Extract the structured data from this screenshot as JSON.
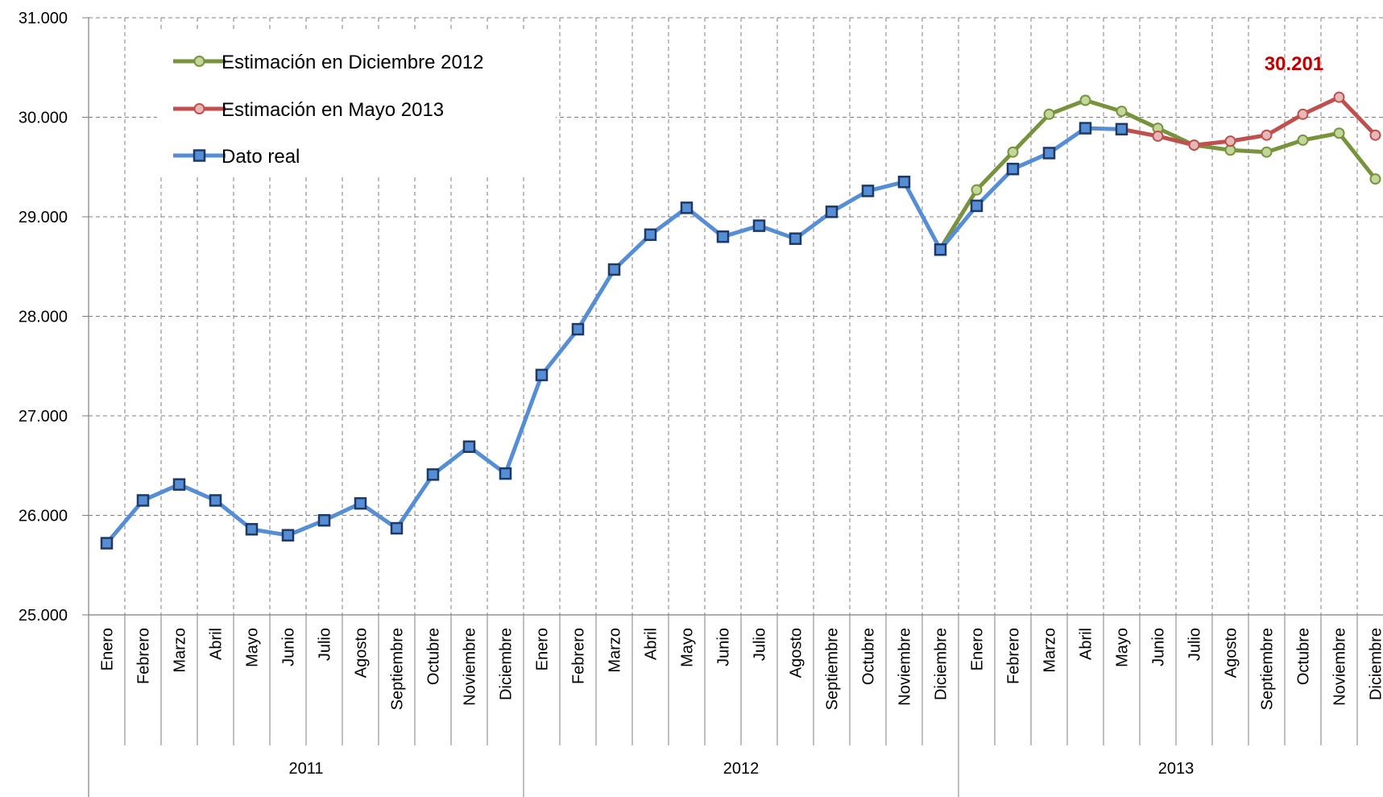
{
  "chart_data": {
    "type": "line",
    "title": "",
    "xlabel": "",
    "ylabel": "",
    "ylim": [
      25000,
      31000
    ],
    "yticks": [
      25000,
      26000,
      27000,
      28000,
      29000,
      30000,
      31000
    ],
    "ytick_labels": [
      "25.000",
      "26.000",
      "27.000",
      "28.000",
      "29.000",
      "30.000",
      "31.000"
    ],
    "grid": true,
    "legend_position": "top-left",
    "categories": [
      "Enero",
      "Febrero",
      "Marzo",
      "Abril",
      "Mayo",
      "Junio",
      "Julio",
      "Agosto",
      "Septiembre",
      "Octubre",
      "Noviembre",
      "Diciembre",
      "Enero",
      "Febrero",
      "Marzo",
      "Abril",
      "Mayo",
      "Junio",
      "Julio",
      "Agosto",
      "Septiembre",
      "Octubre",
      "Noviembre",
      "Diciembre",
      "Enero",
      "Febrero",
      "Marzo",
      "Abril",
      "Mayo",
      "Junio",
      "Julio",
      "Agosto",
      "Septiembre",
      "Octubre",
      "Noviembre",
      "Diciembre"
    ],
    "groups": [
      {
        "label": "2011",
        "count": 12
      },
      {
        "label": "2012",
        "count": 12
      },
      {
        "label": "2013",
        "count": 12
      }
    ],
    "series": [
      {
        "name": "Estimación en Diciembre 2012",
        "color": "#77933c",
        "marker_fill": "#c3d69b",
        "marker": "circle",
        "values": [
          null,
          null,
          null,
          null,
          null,
          null,
          null,
          null,
          null,
          null,
          null,
          null,
          null,
          null,
          null,
          null,
          null,
          null,
          null,
          null,
          null,
          null,
          null,
          28680,
          29270,
          29650,
          30030,
          30170,
          30060,
          29890,
          29720,
          29670,
          29650,
          29770,
          29840,
          29380
        ]
      },
      {
        "name": "Estimación en Mayo 2013",
        "color": "#c0504d",
        "marker_fill": "#e6b9b8",
        "marker": "circle",
        "values": [
          null,
          null,
          null,
          null,
          null,
          null,
          null,
          null,
          null,
          null,
          null,
          null,
          null,
          null,
          null,
          null,
          null,
          null,
          null,
          null,
          null,
          null,
          null,
          null,
          null,
          null,
          null,
          null,
          29880,
          29810,
          29720,
          29760,
          29820,
          30030,
          30201,
          29820
        ]
      },
      {
        "name": "Dato real",
        "color": "#558ed5",
        "marker_fill": "#558ed5",
        "marker_stroke": "#1f3864",
        "marker": "square",
        "values": [
          25720,
          26150,
          26310,
          26150,
          25860,
          25800,
          25950,
          26120,
          25870,
          26410,
          26690,
          26420,
          27410,
          27870,
          28470,
          28820,
          29090,
          28800,
          28910,
          28780,
          29050,
          29260,
          29350,
          28670,
          29110,
          29480,
          29640,
          29890,
          29880,
          null,
          null,
          null,
          null,
          null,
          null,
          null
        ]
      }
    ],
    "annotations": [
      {
        "text": "30.201",
        "series": 1,
        "index": 34,
        "color": "#c00000"
      }
    ]
  }
}
